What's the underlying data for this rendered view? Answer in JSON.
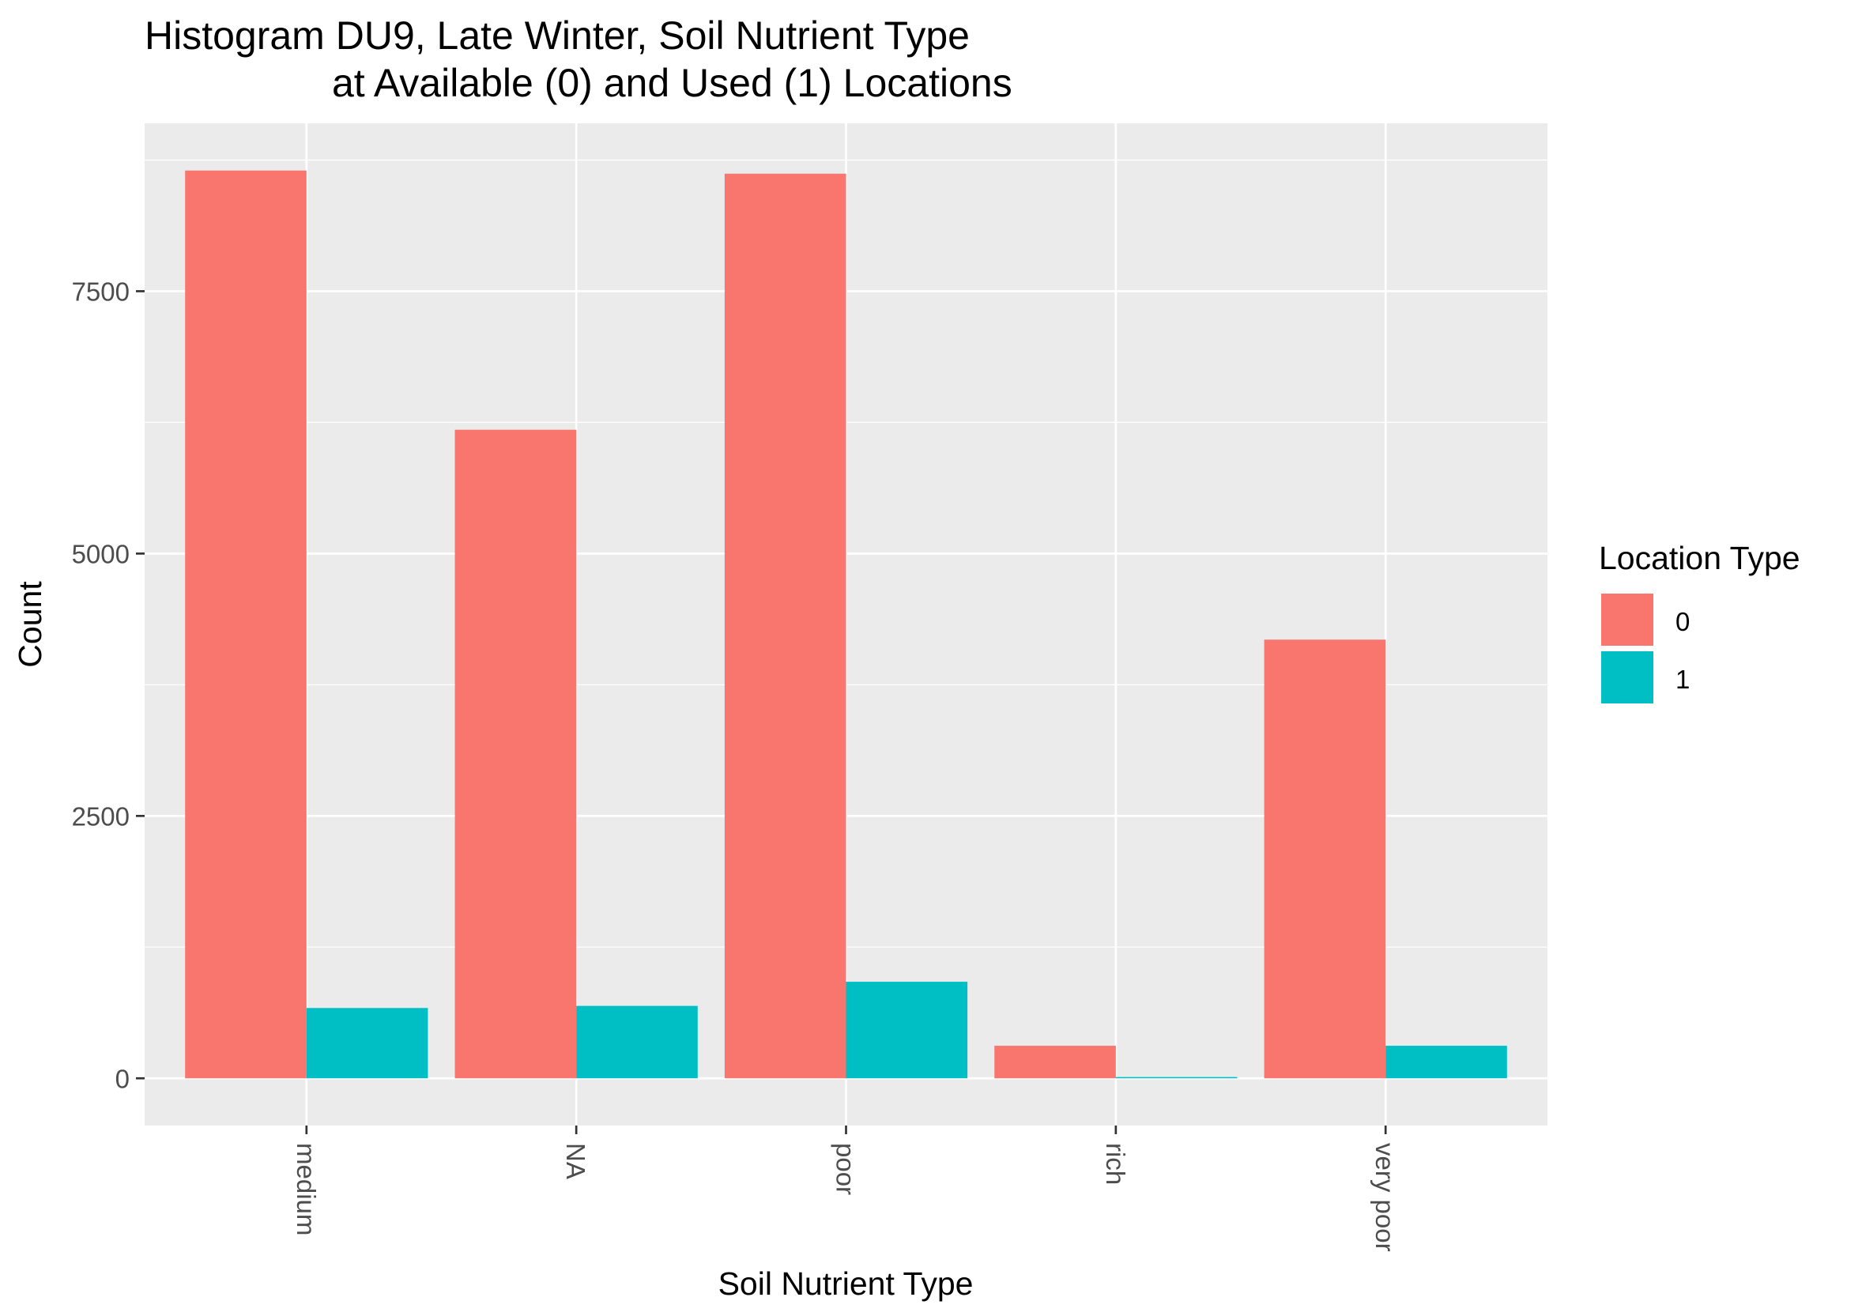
{
  "chart_data": {
    "type": "bar",
    "title_line1": "Histogram DU9, Late Winter, Soil Nutrient Type",
    "title_line2": "at Available (0) and Used (1) Locations",
    "xlabel": "Soil Nutrient Type",
    "ylabel": "Count",
    "categories": [
      "medium",
      "NA",
      "poor",
      "rich",
      "very poor"
    ],
    "y_ticks": [
      0,
      2500,
      5000,
      7500
    ],
    "y_tick_labels": [
      "0",
      "2500",
      "5000",
      "7500"
    ],
    "ylim": [
      -450,
      9100
    ],
    "grid": true,
    "legend_position": "right",
    "legend": {
      "title": "Location Type",
      "entries": [
        "0",
        "1"
      ]
    },
    "series": [
      {
        "name": "0",
        "color": "#F8766D",
        "values": [
          8650,
          6180,
          8620,
          310,
          4180
        ]
      },
      {
        "name": "1",
        "color": "#00BFC4",
        "values": [
          670,
          690,
          920,
          12,
          310
        ]
      }
    ],
    "panel_background": "#EBEBEB",
    "grid_color": "#FFFFFF"
  }
}
